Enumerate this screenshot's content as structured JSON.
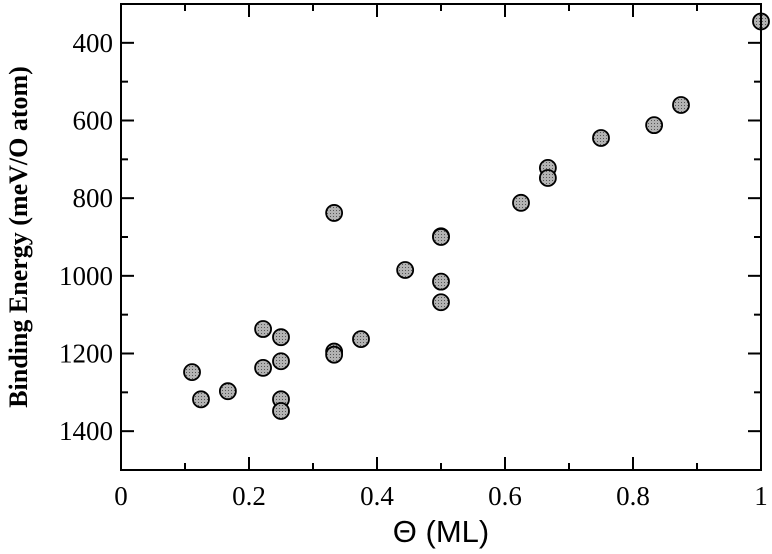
{
  "chart_data": {
    "type": "scatter",
    "title": "",
    "xlabel": "Θ (ML)",
    "ylabel": "Binding Energy (meV/O atom)",
    "xlim": [
      0,
      1
    ],
    "ylim": [
      1500,
      300
    ],
    "y_inverted": true,
    "x_ticks": [
      0,
      0.2,
      0.4,
      0.6,
      0.8,
      1
    ],
    "x_tick_labels": [
      "0",
      "0.2",
      "0.4",
      "0.6",
      "0.8",
      "1"
    ],
    "y_ticks": [
      400,
      600,
      800,
      1000,
      1200,
      1400
    ],
    "y_tick_labels": [
      "400",
      "600",
      "800",
      "1000",
      "1200",
      "1400"
    ],
    "grid": false,
    "marker": {
      "shape": "circle",
      "fill": "#b3b3b3",
      "stroke": "#000000"
    },
    "points": [
      {
        "x": 0.111,
        "y": 1248
      },
      {
        "x": 0.125,
        "y": 1318
      },
      {
        "x": 0.167,
        "y": 1297
      },
      {
        "x": 0.222,
        "y": 1137
      },
      {
        "x": 0.222,
        "y": 1237
      },
      {
        "x": 0.25,
        "y": 1158
      },
      {
        "x": 0.25,
        "y": 1220
      },
      {
        "x": 0.25,
        "y": 1318
      },
      {
        "x": 0.25,
        "y": 1348
      },
      {
        "x": 0.333,
        "y": 838
      },
      {
        "x": 0.333,
        "y": 1195
      },
      {
        "x": 0.333,
        "y": 1203
      },
      {
        "x": 0.375,
        "y": 1163
      },
      {
        "x": 0.444,
        "y": 985
      },
      {
        "x": 0.5,
        "y": 898
      },
      {
        "x": 0.5,
        "y": 900
      },
      {
        "x": 0.5,
        "y": 1015
      },
      {
        "x": 0.5,
        "y": 1068
      },
      {
        "x": 0.625,
        "y": 812
      },
      {
        "x": 0.667,
        "y": 722
      },
      {
        "x": 0.667,
        "y": 748
      },
      {
        "x": 0.75,
        "y": 645
      },
      {
        "x": 0.833,
        "y": 612
      },
      {
        "x": 0.875,
        "y": 560
      },
      {
        "x": 1.0,
        "y": 345
      }
    ]
  }
}
